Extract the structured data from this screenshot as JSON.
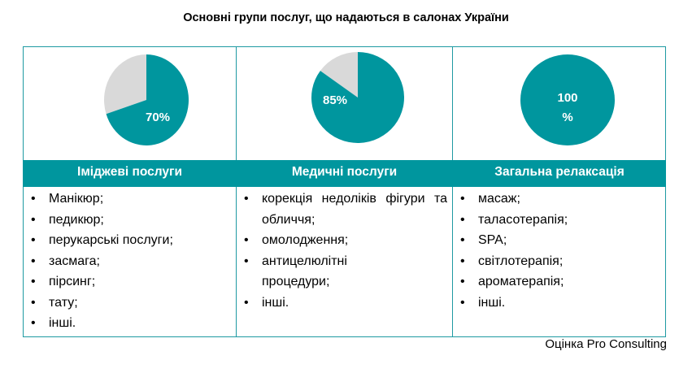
{
  "title": "Основні групи послуг, що надаються в салонах України",
  "colors": {
    "teal": "#00969e",
    "grey": "#d9d9d9",
    "border": "#1e9aa2"
  },
  "chart_data": {
    "type": "pie",
    "charts": [
      {
        "category": "Іміджеві послуги",
        "value": 70,
        "label": "70%"
      },
      {
        "category": "Медичні послуги",
        "value": 85,
        "label": "85%"
      },
      {
        "category": "Загальна релаксація",
        "value": 100,
        "label_lines": [
          "100",
          "%"
        ]
      }
    ]
  },
  "columns": [
    {
      "title": "Іміджеві послуги",
      "items": [
        "Манікюр;",
        "педикюр;",
        "перукарські послуги;",
        "засмага;",
        "пірсинг;",
        "тату;",
        "інші."
      ]
    },
    {
      "title": "Медичні послуги",
      "items": [
        "корекція недоліків фігури та обличчя;",
        "омолодження;",
        "антицелюлітні процедури;",
        "інші."
      ]
    },
    {
      "title": "Загальна релаксація",
      "items": [
        "масаж;",
        "таласотерапія;",
        "SPA;",
        "світлотерапія;",
        "ароматерапія;",
        "інші."
      ]
    }
  ],
  "source": "Оцінка Pro Consulting"
}
